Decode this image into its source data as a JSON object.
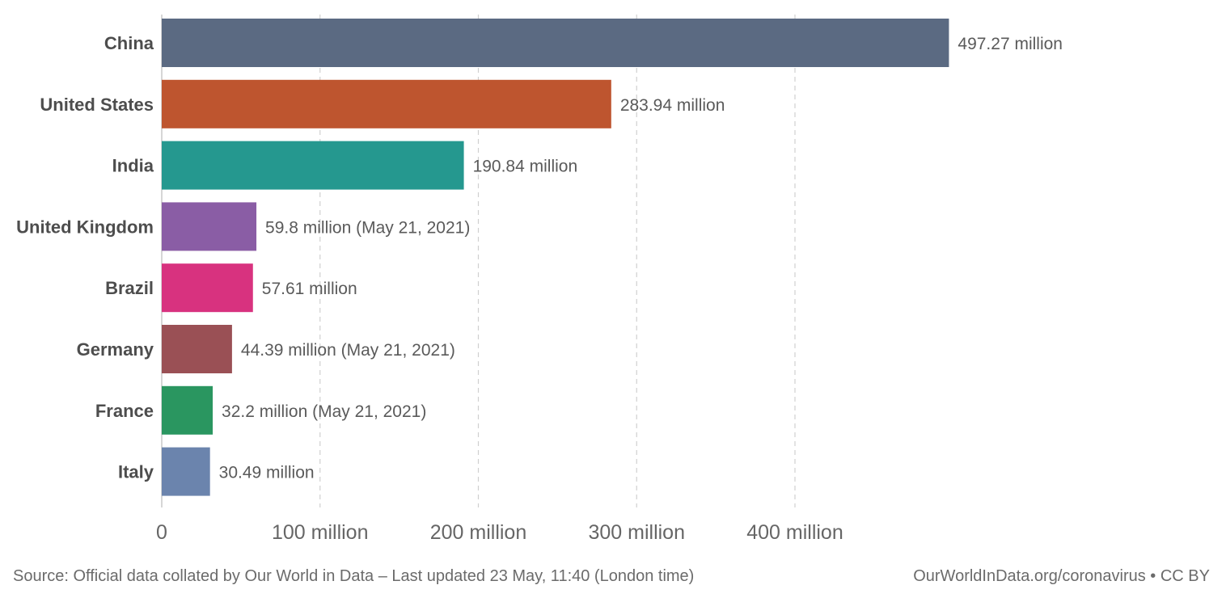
{
  "chart_data": {
    "type": "bar",
    "orientation": "horizontal",
    "categories": [
      "China",
      "United States",
      "India",
      "United Kingdom",
      "Brazil",
      "Germany",
      "France",
      "Italy"
    ],
    "values": [
      497.27,
      283.94,
      190.84,
      59.8,
      57.61,
      44.39,
      32.2,
      30.49
    ],
    "value_labels": [
      "497.27 million",
      "283.94 million",
      "190.84 million",
      "59.8 million (May 21, 2021)",
      "57.61 million",
      "44.39 million (May 21, 2021)",
      "32.2 million (May 21, 2021)",
      "30.49 million"
    ],
    "colors": [
      "#5b6a82",
      "#be552f",
      "#25988f",
      "#8a5da5",
      "#d8327f",
      "#9a5055",
      "#2a9660",
      "#6b84ad"
    ],
    "xticks": [
      0,
      100,
      200,
      300,
      400
    ],
    "xtick_labels": [
      "0",
      "100 million",
      "200 million",
      "300 million",
      "400 million"
    ],
    "xlim": [
      0,
      500
    ],
    "grid": "vertical-dashed",
    "title": "",
    "xlabel": "",
    "ylabel": ""
  },
  "footer": {
    "source": "Source: Official data collated by Our World in Data – Last updated 23 May, 11:40 (London time)",
    "credit": "OurWorldInData.org/coronavirus • CC BY"
  }
}
